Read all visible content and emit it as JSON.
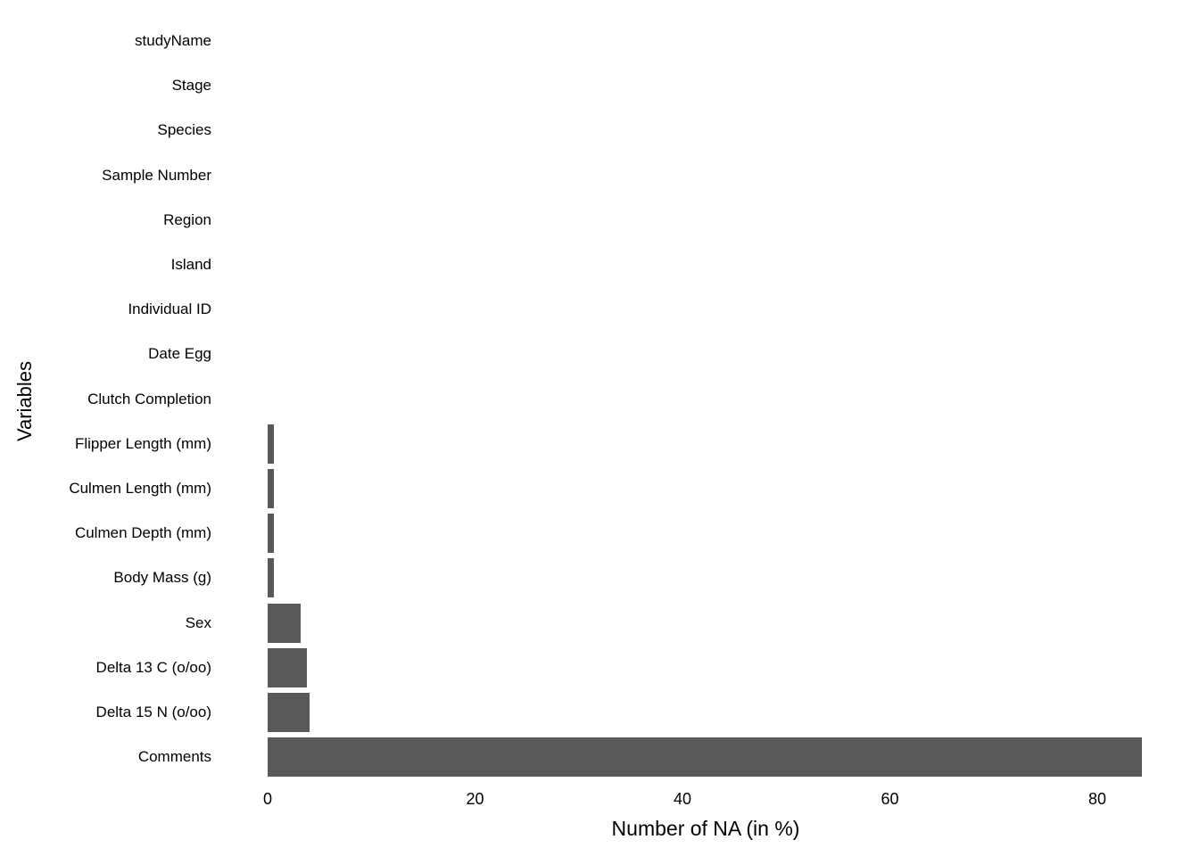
{
  "chart_data": {
    "type": "bar",
    "orientation": "horizontal",
    "title": "",
    "xlabel": "Number of NA (in %)",
    "ylabel": "Variables",
    "categories": [
      "studyName",
      "Stage",
      "Species",
      "Sample Number",
      "Region",
      "Island",
      "Individual ID",
      "Date Egg",
      "Clutch Completion",
      "Flipper Length (mm)",
      "Culmen Length (mm)",
      "Culmen Depth (mm)",
      "Body Mass (g)",
      "Sex",
      "Delta 13 C (o/oo)",
      "Delta 15 N (o/oo)",
      "Comments"
    ],
    "values": [
      0,
      0,
      0,
      0,
      0,
      0,
      0,
      0,
      0,
      0.58,
      0.58,
      0.58,
      0.58,
      3.2,
      3.78,
      4.07,
      84.3
    ],
    "x_ticks": [
      0,
      20,
      40,
      60,
      80
    ],
    "xlim": [
      0,
      88.6
    ],
    "bar_color": "#595959",
    "text_color": "#000000",
    "background_color": "#ffffff",
    "grid": false,
    "legend": "none"
  }
}
